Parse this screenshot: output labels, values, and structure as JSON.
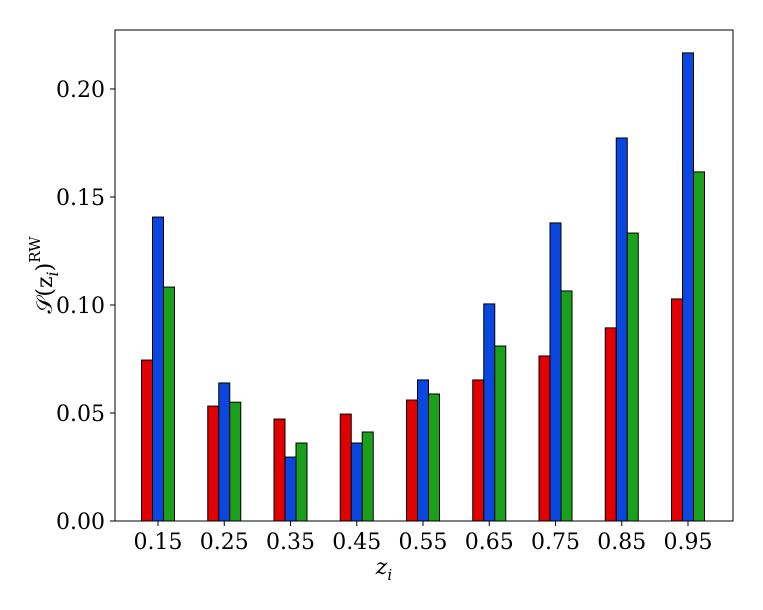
{
  "chart_data": {
    "type": "bar",
    "xlabel": {
      "base": "z",
      "sub": "i"
    },
    "ylabel": {
      "base": "𝒮(z",
      "sub": "i",
      "close": ")",
      "sup": "RW"
    },
    "categories": [
      "0.15",
      "0.25",
      "0.35",
      "0.45",
      "0.55",
      "0.65",
      "0.75",
      "0.85",
      "0.95"
    ],
    "series": [
      {
        "color": "#e00000",
        "values": [
          0.0745,
          0.0532,
          0.0472,
          0.0495,
          0.056,
          0.0653,
          0.0764,
          0.0894,
          0.1028
        ]
      },
      {
        "color": "#0a46e0",
        "values": [
          0.1407,
          0.0639,
          0.0296,
          0.0361,
          0.0653,
          0.1005,
          0.138,
          0.1773,
          0.2167
        ]
      },
      {
        "color": "#1aa01a",
        "values": [
          0.1083,
          0.055,
          0.0361,
          0.0412,
          0.0588,
          0.081,
          0.1065,
          0.1333,
          0.1616
        ]
      }
    ],
    "ylim": [
      0,
      0.2273
    ],
    "yticks": [
      {
        "value": 0,
        "label": "0.00"
      },
      {
        "value": 0.05,
        "label": "0.05"
      },
      {
        "value": 0.1,
        "label": "0.10"
      },
      {
        "value": 0.15,
        "label": "0.15"
      },
      {
        "value": 0.2,
        "label": "0.20"
      }
    ],
    "grid": false
  }
}
